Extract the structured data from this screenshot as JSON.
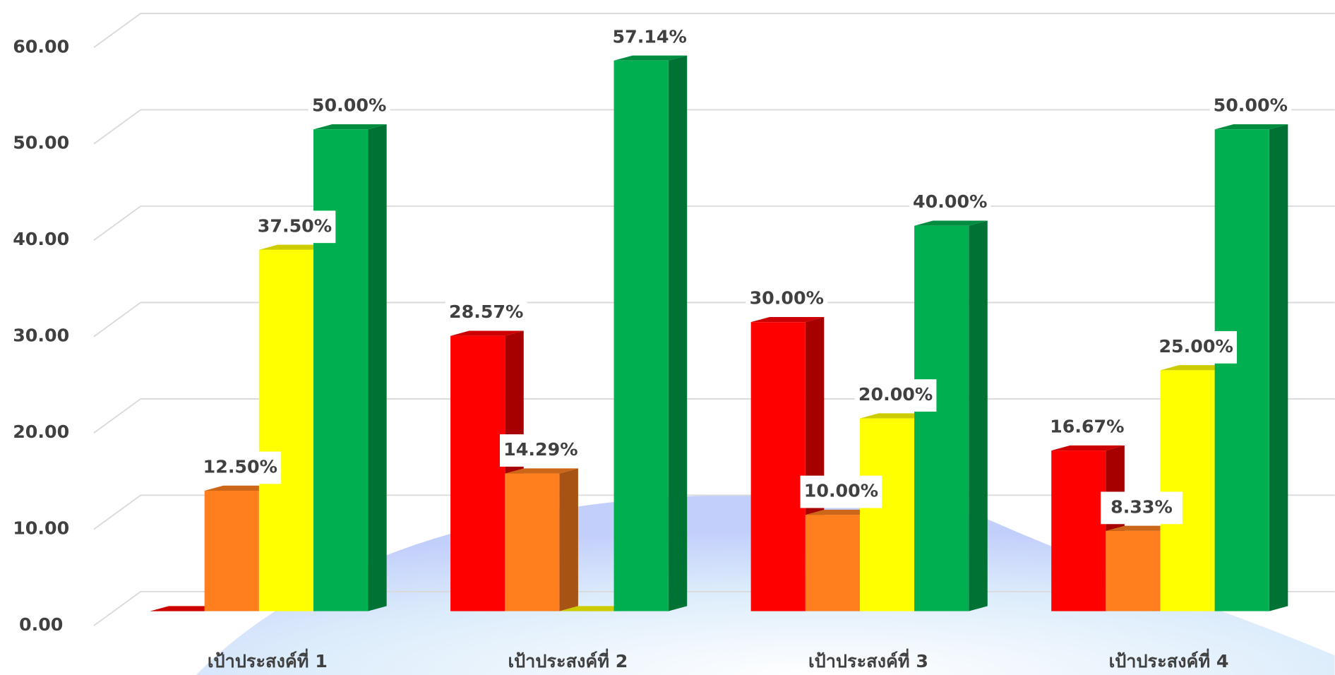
{
  "chart_data": {
    "type": "bar3d",
    "categories": [
      "เป้าประสงค์ที่ 1",
      "เป้าประสงค์ที่ 2",
      "เป้าประสงค์ที่ 3",
      "เป้าประสงค์ที่ 4"
    ],
    "series": [
      {
        "color": "#ff0000",
        "values": [
          0,
          28.57,
          30,
          16.67
        ],
        "value_labels": [
          null,
          "28.57%",
          "30.00%",
          "16.67%"
        ]
      },
      {
        "color": "#ff7f1f",
        "values": [
          12.5,
          14.29,
          10,
          8.33
        ],
        "value_labels": [
          "12.50%",
          "14.29%",
          "10.00%",
          "8.33%"
        ]
      },
      {
        "color": "#ffff00",
        "values": [
          37.5,
          0,
          20,
          25
        ],
        "value_labels": [
          "37.50%",
          null,
          "20.00%",
          "25.00%"
        ]
      },
      {
        "color": "#00b050",
        "values": [
          50,
          57.14,
          40,
          50
        ],
        "value_labels": [
          "50.00%",
          "57.14%",
          "40.00%",
          "50.00%"
        ]
      }
    ],
    "ylim": [
      0,
      60
    ],
    "yticks": [
      {
        "value": 0,
        "label": "0.00"
      },
      {
        "value": 10,
        "label": "10.00"
      },
      {
        "value": 20,
        "label": "20.00"
      },
      {
        "value": 30,
        "label": "30.00"
      },
      {
        "value": 40,
        "label": "40.00"
      },
      {
        "value": 50,
        "label": "50.00"
      },
      {
        "value": 60,
        "label": "60.00"
      }
    ],
    "grid": true
  }
}
